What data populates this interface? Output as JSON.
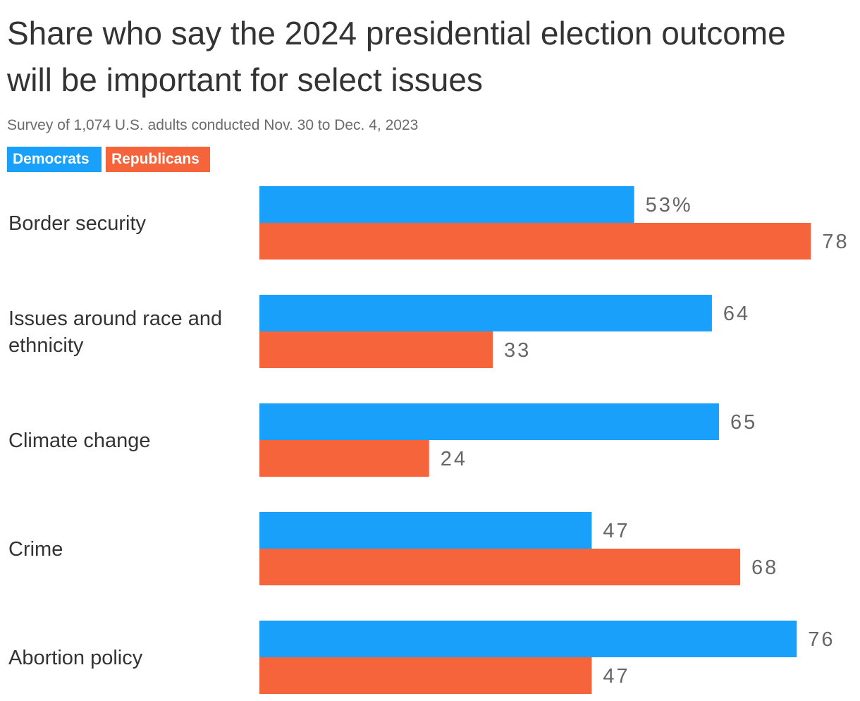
{
  "title": "Share who say the 2024 presidential election outcome will be important for select issues",
  "subtitle": "Survey of 1,074 U.S. adults conducted Nov. 30 to Dec. 4, 2023",
  "legend": [
    {
      "label": "Democrats",
      "color": "#18a0fb"
    },
    {
      "label": "Republicans",
      "color": "#f6643c"
    }
  ],
  "chart_data": {
    "type": "bar",
    "orientation": "horizontal",
    "title": "Share who say the 2024 presidential election outcome will be important for select issues",
    "subtitle": "Survey of 1,074 U.S. adults conducted Nov. 30 to Dec. 4, 2023",
    "categories": [
      [
        "Border security"
      ],
      [
        "Issues around race and",
        "ethnicity"
      ],
      [
        "Climate change"
      ],
      [
        "Crime"
      ],
      [
        "Abortion policy"
      ]
    ],
    "series": [
      {
        "name": "Democrats",
        "color": "#18a0fb",
        "values": [
          53,
          64,
          65,
          47,
          76
        ],
        "labels": [
          "53%",
          "64",
          "65",
          "47",
          "76"
        ]
      },
      {
        "name": "Republicans",
        "color": "#f6643c",
        "values": [
          78,
          33,
          24,
          68,
          47
        ],
        "labels": [
          "78",
          "33",
          "24",
          "68",
          "47"
        ]
      }
    ],
    "unit": "%",
    "xlim": [
      0,
      100
    ],
    "grid": false,
    "legend_position": "top-left"
  }
}
